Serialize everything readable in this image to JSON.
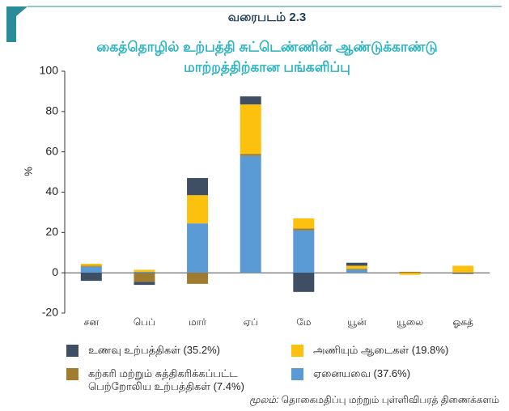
{
  "chart_data": {
    "type": "bar",
    "stacked": true,
    "title": "வரைபடம் 2.3",
    "subtitle": [
      "கைத்தொழில் உற்பத்தி சுட்டெண்ணின் ஆண்டுக்காண்டு",
      "மாற்றத்திற்கான பங்களிப்பு"
    ],
    "y_label": "%",
    "categories": [
      "சன",
      "பெப்",
      "மார்",
      "ஏப்",
      "மே",
      "யூன்",
      "யூலை",
      "ஓகத்"
    ],
    "series": [
      {
        "name": "உணவு உற்பத்திகள் (35.2%)",
        "color": "#3f4f63",
        "values": [
          -4,
          -1.5,
          8.5,
          4,
          -9.5,
          1.5,
          0,
          -0.5
        ]
      },
      {
        "name": "அணியும் ஆடைகள் (19.8%)",
        "color": "#fcc10f",
        "values": [
          1,
          1,
          14,
          24.5,
          5,
          1.5,
          -1,
          3.5
        ]
      },
      {
        "name": "கற்கரி மற்றும் சுத்திகரிக்கப்பட்ட பெற்றோலிய உற்பத்திகள் (7.4%)",
        "color": "#a07d2e",
        "values": [
          0.5,
          -4.5,
          -5.5,
          1,
          1,
          0.5,
          0.5,
          0
        ]
      },
      {
        "name": "ஏனையவை (37.6%)",
        "color": "#5b9bd5",
        "values": [
          3,
          0.5,
          24.5,
          58,
          21,
          1.5,
          0,
          0
        ]
      }
    ],
    "stack_order": [
      3,
      2,
      1,
      0
    ],
    "ylim": [
      -20,
      100
    ],
    "yticks": [
      -20,
      0,
      20,
      40,
      60,
      80,
      100
    ],
    "source_label": "மூலம்:",
    "source": "தொகைமதிப்பு மற்றும் புள்ளிவிபரத் திணைக்களம்"
  }
}
